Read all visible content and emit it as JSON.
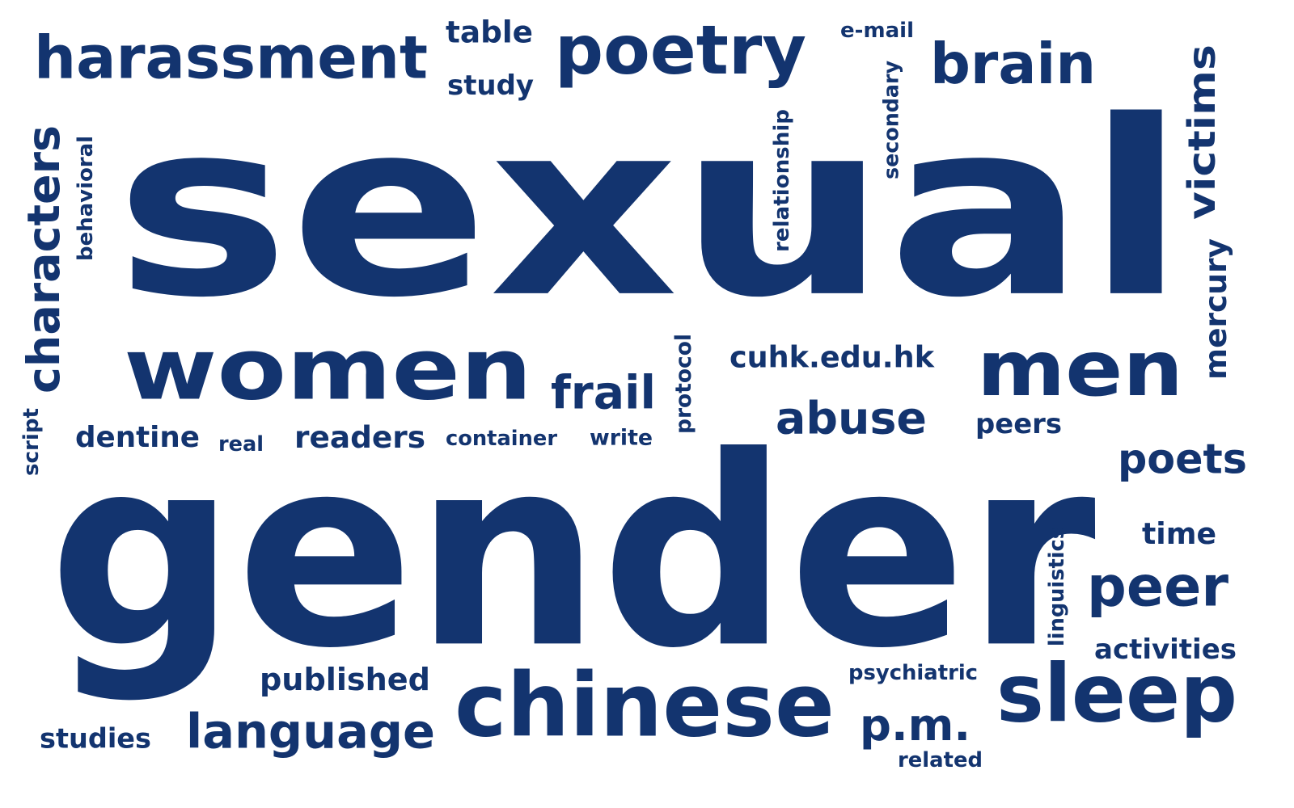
{
  "cloud": {
    "text_color": "#13346f",
    "background_color": "#ffffff",
    "words": [
      {
        "text": "sexual"
      },
      {
        "text": "gender"
      },
      {
        "text": "women"
      },
      {
        "text": "men"
      },
      {
        "text": "chinese"
      },
      {
        "text": "sleep"
      },
      {
        "text": "harassment"
      },
      {
        "text": "poetry"
      },
      {
        "text": "brain"
      },
      {
        "text": "victims"
      },
      {
        "text": "characters"
      },
      {
        "text": "abuse"
      },
      {
        "text": "language"
      },
      {
        "text": "peer"
      },
      {
        "text": "frail"
      },
      {
        "text": "poets"
      },
      {
        "text": "p.m."
      },
      {
        "text": "mercury"
      },
      {
        "text": "published"
      },
      {
        "text": "readers"
      },
      {
        "text": "dentine"
      },
      {
        "text": "cuhk.edu.hk"
      },
      {
        "text": "activities"
      },
      {
        "text": "time"
      },
      {
        "text": "table"
      },
      {
        "text": "study"
      },
      {
        "text": "studies"
      },
      {
        "text": "peers"
      },
      {
        "text": "relationship"
      },
      {
        "text": "secondary"
      },
      {
        "text": "behavioral"
      },
      {
        "text": "linguistics"
      },
      {
        "text": "protocol"
      },
      {
        "text": "psychiatric"
      },
      {
        "text": "related"
      },
      {
        "text": "container"
      },
      {
        "text": "write"
      },
      {
        "text": "real"
      },
      {
        "text": "script"
      },
      {
        "text": "e-mail"
      }
    ]
  }
}
